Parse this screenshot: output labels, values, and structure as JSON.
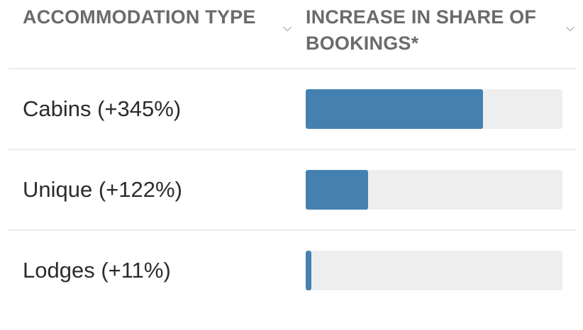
{
  "header": {
    "type_label": "ACCOMMODATION TYPE",
    "share_label": "INCREASE IN SHARE OF BOOKINGS*"
  },
  "colors": {
    "bar_fill": "#4581b0",
    "bar_track": "#eeeeee",
    "header_text": "#6b6b6b",
    "row_text": "#2b2b2b"
  },
  "icons": {
    "sort": "chevron-down-icon"
  },
  "chart_data": {
    "type": "bar",
    "orientation": "horizontal",
    "categories": [
      "Cabins (+345%)",
      "Unique (+122%)",
      "Lodges (+11%)"
    ],
    "values": [
      345,
      122,
      11
    ],
    "xlim": [
      0,
      500
    ],
    "grid": false
  }
}
